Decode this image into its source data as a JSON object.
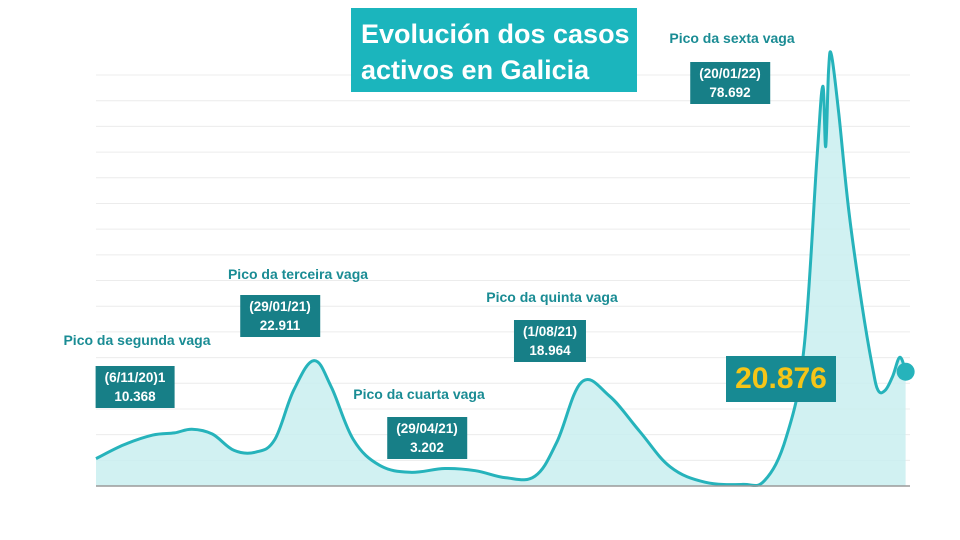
{
  "title": {
    "line1": "Evolución dos casos",
    "line2": "activos en Galicia"
  },
  "colors": {
    "title_bg": "#1bb5bd",
    "line": "#26b3bb",
    "fill": "#c9eef0",
    "label_text": "#1a8c94",
    "box_bg": "#177f87",
    "current_value": "#f5c518",
    "grid": "#ececec"
  },
  "peaks": [
    {
      "label": "Pico da segunda vaga",
      "date": "(6/11/20)1",
      "value": "10.368"
    },
    {
      "label": "Pico da terceira vaga",
      "date": "(29/01/21)",
      "value": "22.911"
    },
    {
      "label": "Pico da cuarta vaga",
      "date": "(29/04/21)",
      "value": "3.202"
    },
    {
      "label": "Pico da quinta vaga",
      "date": "(1/08/21)",
      "value": "18.964"
    },
    {
      "label": "Pico da sexta vaga",
      "date": "(20/01/22)",
      "value": "78.692"
    }
  ],
  "current": {
    "value": "20.876"
  },
  "chart_data": {
    "type": "area",
    "title": "Evolución dos casos activos en Galicia",
    "xlabel": "",
    "ylabel": "",
    "grid": true,
    "ylim": [
      0,
      80000
    ],
    "x_range": [
      "2020-09-01",
      "2022-03-15"
    ],
    "series": [
      {
        "points": [
          [
            "2020-09-01",
            5000
          ],
          [
            "2020-09-20",
            7500
          ],
          [
            "2020-10-10",
            9300
          ],
          [
            "2020-10-25",
            9700
          ],
          [
            "2020-11-06",
            10368
          ],
          [
            "2020-11-20",
            9500
          ],
          [
            "2020-12-05",
            6500
          ],
          [
            "2020-12-20",
            6200
          ],
          [
            "2021-01-02",
            8500
          ],
          [
            "2021-01-15",
            17500
          ],
          [
            "2021-01-29",
            22911
          ],
          [
            "2021-02-10",
            18000
          ],
          [
            "2021-02-25",
            8500
          ],
          [
            "2021-03-15",
            3800
          ],
          [
            "2021-04-05",
            2500
          ],
          [
            "2021-04-29",
            3202
          ],
          [
            "2021-05-20",
            2800
          ],
          [
            "2021-06-10",
            1500
          ],
          [
            "2021-06-30",
            1800
          ],
          [
            "2021-07-15",
            8000
          ],
          [
            "2021-08-01",
            18964
          ],
          [
            "2021-08-20",
            16500
          ],
          [
            "2021-09-10",
            10000
          ],
          [
            "2021-10-01",
            3500
          ],
          [
            "2021-10-25",
            700
          ],
          [
            "2021-11-20",
            300
          ],
          [
            "2021-12-05",
            1000
          ],
          [
            "2021-12-20",
            9000
          ],
          [
            "2022-01-01",
            25000
          ],
          [
            "2022-01-10",
            60000
          ],
          [
            "2022-01-14",
            73000
          ],
          [
            "2022-01-16",
            62000
          ],
          [
            "2022-01-18",
            76000
          ],
          [
            "2022-01-20",
            78692
          ],
          [
            "2022-01-25",
            68000
          ],
          [
            "2022-02-01",
            50000
          ],
          [
            "2022-02-10",
            33000
          ],
          [
            "2022-02-17",
            22000
          ],
          [
            "2022-02-21",
            17500
          ],
          [
            "2022-02-26",
            17500
          ],
          [
            "2022-03-03",
            20000
          ],
          [
            "2022-03-08",
            23500
          ],
          [
            "2022-03-12",
            20876
          ]
        ]
      }
    ]
  }
}
